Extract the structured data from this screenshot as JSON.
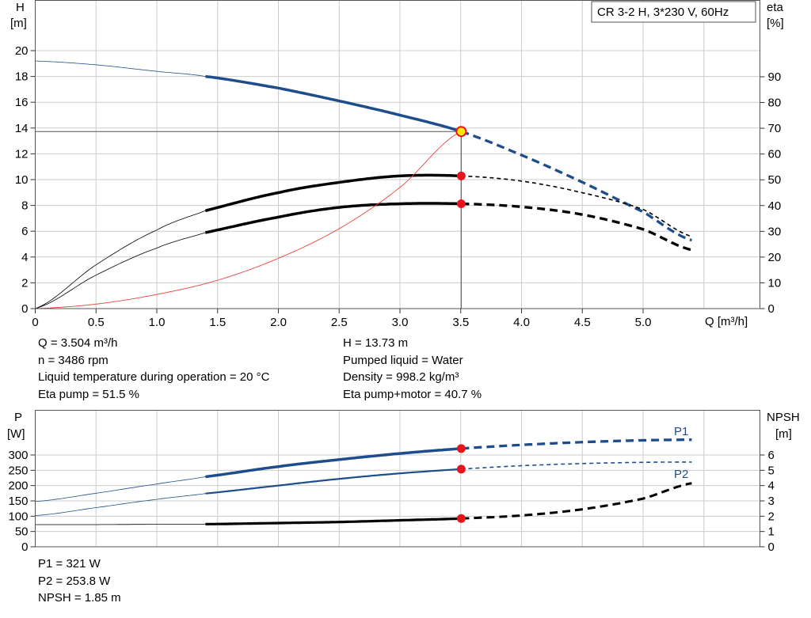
{
  "title_box": "CR 3-2 H, 3*230 V, 60Hz",
  "colors": {
    "blue": "#1e4d8c",
    "black": "#000000",
    "efficiency_line": "#e8453c",
    "marker_red": "#e8141c",
    "marker_yellow": "#ffe800",
    "grid": "#cccccc"
  },
  "info_top": {
    "q": "Q = 3.504 m³/h",
    "n": "n = 3486 rpm",
    "temp": "Liquid temperature during operation = 20 °C",
    "eta_pump": "Eta pump = 51.5 %",
    "h": "H = 13.73 m",
    "liquid": "Pumped liquid = Water",
    "density": "Density = 998.2 kg/m³",
    "eta_total": "Eta pump+motor = 40.7 %"
  },
  "info_bottom": {
    "p1": "P1 = 321 W",
    "p2": "P2 = 253.8 W",
    "npsh": "NPSH = 1.85 m"
  },
  "chart_data": [
    {
      "type": "line",
      "axes": {
        "y_left": {
          "label": [
            "H",
            "[m]"
          ],
          "ticks": [
            "0",
            "2",
            "4",
            "6",
            "8",
            "10",
            "12",
            "14",
            "16",
            "18",
            "20"
          ],
          "range": [
            0,
            20
          ]
        },
        "y_right": {
          "label": [
            "eta",
            "[%]"
          ],
          "ticks": [
            "0",
            "10",
            "20",
            "30",
            "40",
            "50",
            "60",
            "70",
            "80",
            "90"
          ],
          "range": [
            0,
            100
          ]
        },
        "x": {
          "label": "Q [m³/h]",
          "ticks": [
            "0",
            "0.5",
            "1.0",
            "1.5",
            "2.0",
            "2.5",
            "3.0",
            "3.5",
            "4.0",
            "4.5",
            "5.0"
          ],
          "range": [
            0,
            5.5
          ]
        }
      },
      "grid": true,
      "duty_point": {
        "q": 3.504,
        "h": 13.73,
        "eta_pump": 51.5,
        "eta_total": 40.7
      },
      "series": [
        {
          "axis": "left",
          "color": "#1e4d8c",
          "q": [
            0,
            0.5,
            1.0,
            1.4,
            2.0,
            2.5,
            3.0,
            3.504,
            4.0,
            4.5,
            5.0,
            5.4
          ],
          "values": [
            19.2,
            18.9,
            18.4,
            18.0,
            17.1,
            16.1,
            15.0,
            13.73,
            11.9,
            9.8,
            7.5,
            5.3
          ],
          "solid_range": [
            1.4,
            3.504
          ]
        },
        {
          "axis": "right",
          "color": "#000000",
          "q": [
            0,
            0.5,
            1.0,
            1.4,
            2.0,
            2.5,
            3.0,
            3.504,
            4.0,
            4.5,
            5.0,
            5.4
          ],
          "values": [
            0,
            17,
            30.5,
            38,
            45,
            49,
            51.5,
            51.5,
            49.5,
            45,
            38.5,
            28
          ],
          "solid_range": [
            1.4,
            3.504
          ]
        },
        {
          "axis": "right",
          "color": "#000000",
          "q": [
            0,
            0.5,
            1.0,
            1.4,
            2.0,
            2.5,
            3.0,
            3.504,
            4.0,
            4.5,
            5.0,
            5.4
          ],
          "values": [
            0,
            13,
            23.5,
            29.5,
            35.5,
            39.3,
            40.7,
            40.7,
            39.5,
            36.5,
            30.8,
            22.8
          ],
          "solid_range": [
            1.4,
            3.504
          ]
        },
        {
          "axis": "left",
          "color": "#e8453c",
          "q": [
            0,
            0.5,
            1.0,
            1.5,
            2.0,
            2.5,
            3.0,
            3.504
          ],
          "values": [
            0,
            0.35,
            1.1,
            2.2,
            3.9,
            6.2,
            9.4,
            13.73
          ]
        }
      ]
    },
    {
      "type": "line",
      "axes": {
        "y_left": {
          "label": [
            "P",
            "[W]"
          ],
          "ticks": [
            "0",
            "50",
            "100",
            "150",
            "200",
            "250",
            "300"
          ],
          "range": [
            0,
            350
          ]
        },
        "y_right": {
          "label": [
            "NPSH",
            "[m]"
          ],
          "ticks": [
            "0",
            "1",
            "2",
            "3",
            "4",
            "5",
            "6"
          ],
          "range": [
            0,
            7
          ]
        },
        "x": {
          "range": [
            0,
            5.5
          ]
        }
      },
      "grid": true,
      "duty_point": {
        "q": 3.504,
        "p1": 321,
        "p2": 253.8,
        "npsh": 1.85
      },
      "series": [
        {
          "name": "P1",
          "axis": "left",
          "color": "#1e4d8c",
          "q": [
            0,
            0.5,
            1.0,
            1.4,
            2.0,
            2.5,
            3.0,
            3.504,
            4.0,
            4.5,
            5.0,
            5.4
          ],
          "values": [
            148,
            175,
            205,
            229,
            262,
            285,
            305,
            321,
            333,
            342,
            348,
            350
          ],
          "solid_range": [
            1.4,
            3.504
          ]
        },
        {
          "name": "P2",
          "axis": "left",
          "color": "#1e4d8c",
          "q": [
            0,
            0.5,
            1.0,
            1.4,
            2.0,
            2.5,
            3.0,
            3.504,
            4.0,
            4.5,
            5.0,
            5.4
          ],
          "values": [
            102,
            128,
            155,
            174,
            200,
            222,
            240,
            253.8,
            265,
            272,
            276,
            277
          ],
          "solid_range": [
            1.4,
            3.504
          ]
        },
        {
          "axis": "right",
          "color": "#000000",
          "q": [
            0,
            0.5,
            1.0,
            1.4,
            2.0,
            2.5,
            3.0,
            3.504,
            4.0,
            4.5,
            5.0,
            5.4
          ],
          "values": [
            1.45,
            1.45,
            1.47,
            1.48,
            1.55,
            1.62,
            1.73,
            1.85,
            2.05,
            2.45,
            3.15,
            4.15
          ],
          "solid_range": [
            1.4,
            3.504
          ]
        }
      ]
    }
  ]
}
